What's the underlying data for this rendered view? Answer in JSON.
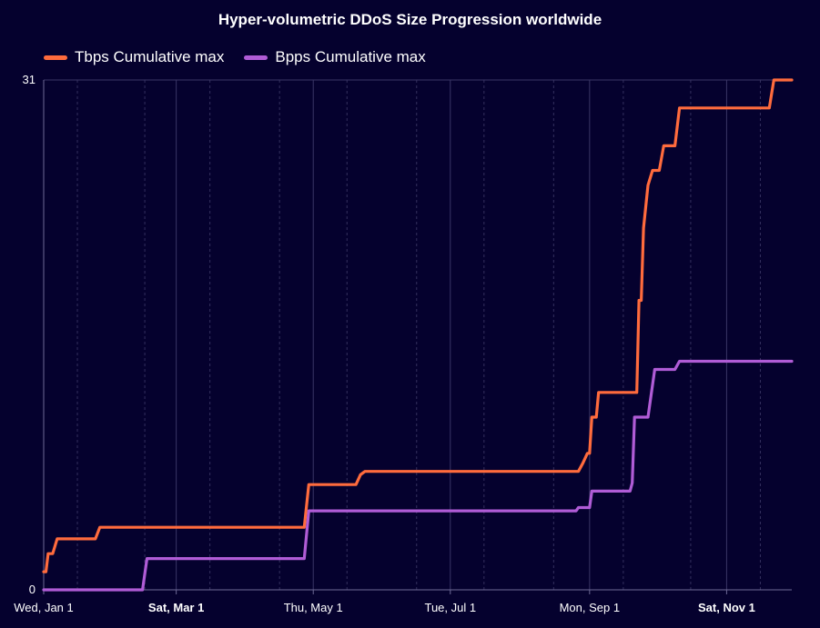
{
  "chart_data": {
    "type": "line",
    "title": "Hyper-volumetric DDoS Size Progression worldwide",
    "xlabel": "",
    "ylabel": "",
    "ylim": [
      0,
      31
    ],
    "y_tick_labels": [
      "0",
      "31"
    ],
    "x_tick_labels": [
      {
        "label": "Wed, Jan 1",
        "date": "2025-01-01",
        "bold": false
      },
      {
        "label": "Sat, Mar 1",
        "date": "2025-03-01",
        "bold": true
      },
      {
        "label": "Thu, May 1",
        "date": "2025-05-01",
        "bold": false
      },
      {
        "label": "Tue, Jul 1",
        "date": "2025-07-01",
        "bold": false
      },
      {
        "label": "Mon, Sep 1",
        "date": "2025-09-01",
        "bold": false
      },
      {
        "label": "Sat, Nov 1",
        "date": "2025-11-01",
        "bold": true
      }
    ],
    "x_range": [
      "2025-01-01",
      "2025-11-30"
    ],
    "grid": true,
    "legend_position": "top-left",
    "series": [
      {
        "name": "Tbps Cumulative max",
        "color": "#ff6b3d",
        "points": [
          [
            "2025-01-01",
            1.1
          ],
          [
            "2025-01-02",
            1.1
          ],
          [
            "2025-01-03",
            2.2
          ],
          [
            "2025-01-05",
            2.2
          ],
          [
            "2025-01-07",
            3.1
          ],
          [
            "2025-01-24",
            3.1
          ],
          [
            "2025-01-26",
            3.8
          ],
          [
            "2025-04-27",
            3.8
          ],
          [
            "2025-04-29",
            6.4
          ],
          [
            "2025-05-20",
            6.4
          ],
          [
            "2025-05-22",
            7.0
          ],
          [
            "2025-05-24",
            7.2
          ],
          [
            "2025-08-27",
            7.2
          ],
          [
            "2025-08-29",
            7.7
          ],
          [
            "2025-08-31",
            8.3
          ],
          [
            "2025-09-01",
            8.3
          ],
          [
            "2025-09-02",
            10.5
          ],
          [
            "2025-09-04",
            10.5
          ],
          [
            "2025-09-05",
            12.0
          ],
          [
            "2025-09-22",
            12.0
          ],
          [
            "2025-09-23",
            17.6
          ],
          [
            "2025-09-24",
            17.6
          ],
          [
            "2025-09-25",
            22.0
          ],
          [
            "2025-09-27",
            24.6
          ],
          [
            "2025-09-29",
            25.5
          ],
          [
            "2025-10-02",
            25.5
          ],
          [
            "2025-10-04",
            27.0
          ],
          [
            "2025-10-09",
            27.0
          ],
          [
            "2025-10-11",
            29.3
          ],
          [
            "2025-11-20",
            29.3
          ],
          [
            "2025-11-22",
            31.0
          ],
          [
            "2025-11-30",
            31.0
          ]
        ]
      },
      {
        "name": "Bpps Cumulative max",
        "color": "#b05cd6",
        "points": [
          [
            "2025-01-01",
            0.0
          ],
          [
            "2025-02-14",
            0.0
          ],
          [
            "2025-02-16",
            1.9
          ],
          [
            "2025-04-27",
            1.9
          ],
          [
            "2025-04-29",
            4.8
          ],
          [
            "2025-08-26",
            4.8
          ],
          [
            "2025-08-27",
            5.0
          ],
          [
            "2025-09-01",
            5.0
          ],
          [
            "2025-09-02",
            6.0
          ],
          [
            "2025-09-19",
            6.0
          ],
          [
            "2025-09-20",
            6.5
          ],
          [
            "2025-09-21",
            10.5
          ],
          [
            "2025-09-27",
            10.5
          ],
          [
            "2025-09-30",
            13.4
          ],
          [
            "2025-10-09",
            13.4
          ],
          [
            "2025-10-11",
            13.9
          ],
          [
            "2025-11-30",
            13.9
          ]
        ]
      }
    ]
  }
}
